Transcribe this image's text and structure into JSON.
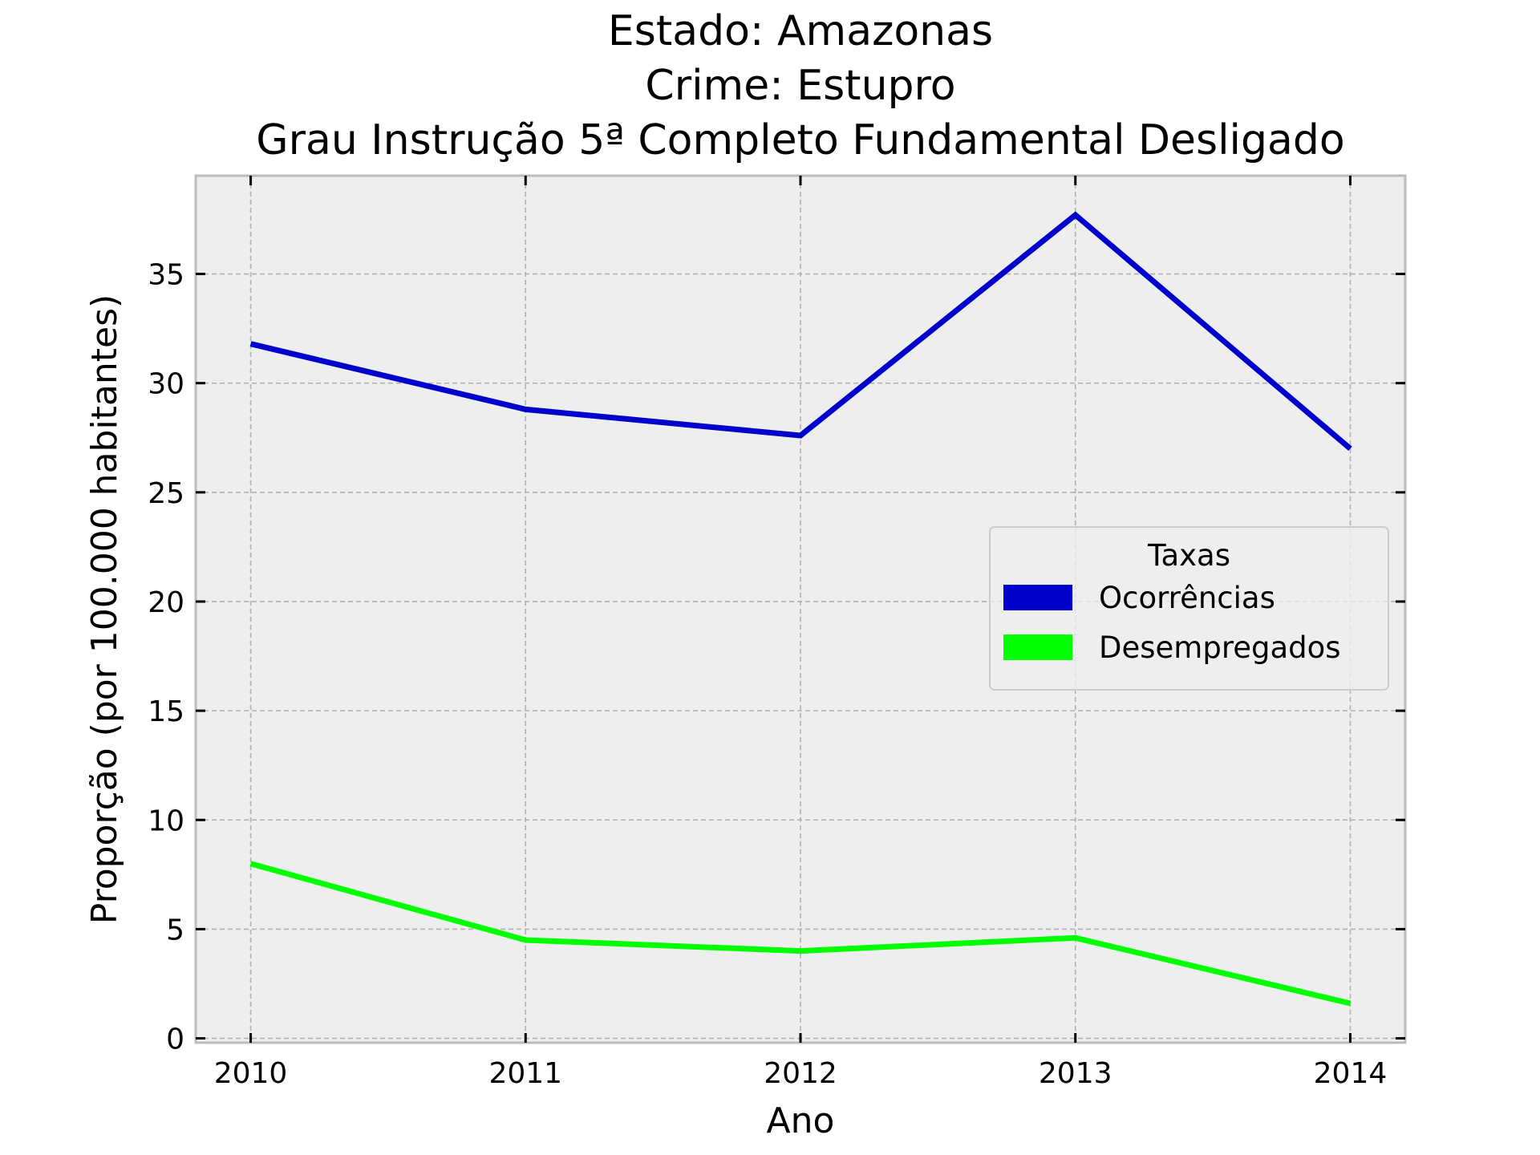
{
  "chart_data": {
    "type": "line",
    "title_lines": [
      "Estado: Amazonas",
      "Crime: Estupro",
      "Grau Instrução  5ª Completo Fundamental   Desligado"
    ],
    "xlabel": "Ano",
    "ylabel": "Proporção (por 100.000 habitantes)",
    "x": [
      2010,
      2011,
      2012,
      2013,
      2014
    ],
    "x_tick_labels": [
      "2010",
      "2011",
      "2012",
      "2013",
      "2014"
    ],
    "y_ticks": [
      0,
      5,
      10,
      15,
      20,
      25,
      30,
      35
    ],
    "y_tick_labels": [
      "0",
      "5",
      "10",
      "15",
      "20",
      "25",
      "30",
      "35"
    ],
    "xlim": [
      2009.8,
      2014.2
    ],
    "ylim": [
      -0.2,
      39.5
    ],
    "grid": true,
    "legend": {
      "title": "Taxas",
      "placement": "center-right"
    },
    "series": [
      {
        "name": "Ocorrências",
        "color": "#0000cc",
        "values": [
          31.8,
          28.8,
          27.6,
          37.7,
          27.0
        ]
      },
      {
        "name": "Desempregados",
        "color": "#00ff00",
        "values": [
          8.0,
          4.5,
          4.0,
          4.6,
          1.6
        ]
      }
    ],
    "plot_background": "#eeeeee",
    "frame_color": "#bcbcbc"
  }
}
